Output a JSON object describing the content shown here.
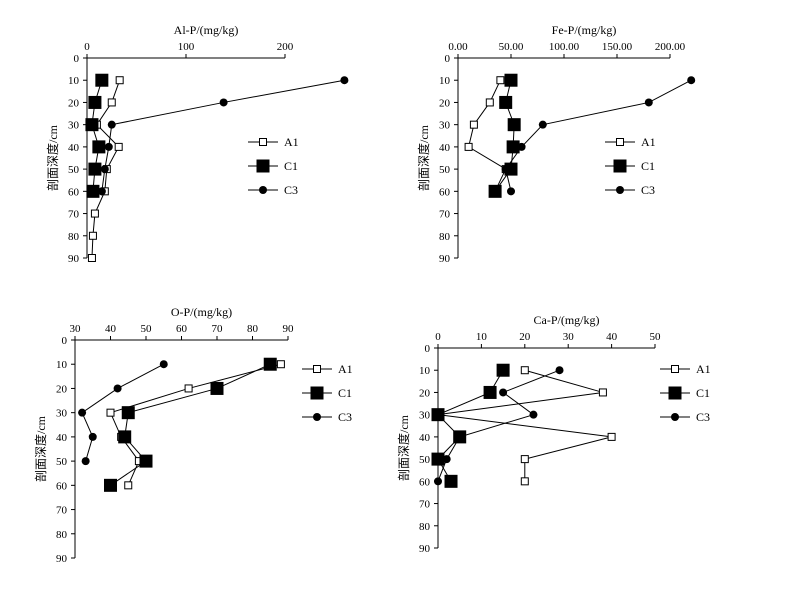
{
  "chart_data": [
    {
      "type": "line",
      "title": "",
      "xlabel": "Al-P/(mg/kg)",
      "ylabel": "剖面深度/cm",
      "xlim": [
        0,
        200
      ],
      "xticks": [
        0,
        100,
        200
      ],
      "ylim": [
        0,
        90
      ],
      "yticks": [
        0,
        10,
        20,
        30,
        40,
        50,
        60,
        70,
        80,
        90
      ],
      "legend_placement": "right",
      "series": [
        {
          "name": "A1",
          "marker": "open-square",
          "points": [
            [
              33,
              10
            ],
            [
              25,
              20
            ],
            [
              10,
              30
            ],
            [
              32,
              40
            ],
            [
              20,
              50
            ],
            [
              18,
              60
            ],
            [
              8,
              70
            ],
            [
              6,
              80
            ],
            [
              5,
              90
            ]
          ]
        },
        {
          "name": "C1",
          "marker": "filled-square",
          "points": [
            [
              15,
              10
            ],
            [
              8,
              20
            ],
            [
              5,
              30
            ],
            [
              12,
              40
            ],
            [
              8,
              50
            ],
            [
              6,
              60
            ]
          ]
        },
        {
          "name": "C3",
          "marker": "filled-circle",
          "points": [
            [
              260,
              10
            ],
            [
              138,
              20
            ],
            [
              25,
              30
            ],
            [
              22,
              40
            ],
            [
              18,
              50
            ],
            [
              15,
              60
            ]
          ]
        }
      ]
    },
    {
      "type": "line",
      "title": "",
      "xlabel": "Fe-P/(mg/kg)",
      "ylabel": "剖面深度/cm",
      "xlim": [
        0,
        200
      ],
      "xticks": [
        0,
        50,
        100,
        150,
        200
      ],
      "xtick_labels": [
        "0.00",
        "50.00",
        "100.00",
        "150.00",
        "200.00"
      ],
      "ylim": [
        0,
        90
      ],
      "yticks": [
        0,
        10,
        20,
        30,
        40,
        50,
        60,
        70,
        80,
        90
      ],
      "legend_placement": "right",
      "series": [
        {
          "name": "A1",
          "marker": "open-square",
          "points": [
            [
              40,
              10
            ],
            [
              30,
              20
            ],
            [
              15,
              30
            ],
            [
              10,
              40
            ],
            [
              45,
              50
            ],
            [
              35,
              60
            ]
          ]
        },
        {
          "name": "C1",
          "marker": "filled-square",
          "points": [
            [
              50,
              10
            ],
            [
              45,
              20
            ],
            [
              53,
              30
            ],
            [
              52,
              40
            ],
            [
              50,
              50
            ],
            [
              35,
              60
            ]
          ]
        },
        {
          "name": "C3",
          "marker": "filled-circle",
          "points": [
            [
              220,
              10
            ],
            [
              180,
              20
            ],
            [
              80,
              30
            ],
            [
              60,
              40
            ],
            [
              45,
              50
            ],
            [
              50,
              60
            ]
          ]
        }
      ]
    },
    {
      "type": "line",
      "title": "",
      "xlabel": "O-P/(mg/kg)",
      "ylabel": "剖面深度/cm",
      "xlim": [
        30,
        90
      ],
      "xticks": [
        30,
        40,
        50,
        60,
        70,
        80,
        90
      ],
      "ylim": [
        0,
        90
      ],
      "yticks": [
        0,
        10,
        20,
        30,
        40,
        50,
        60,
        70,
        80,
        90
      ],
      "legend_placement": "right",
      "series": [
        {
          "name": "A1",
          "marker": "open-square",
          "points": [
            [
              88,
              10
            ],
            [
              62,
              20
            ],
            [
              40,
              30
            ],
            [
              43,
              40
            ],
            [
              48,
              50
            ],
            [
              45,
              60
            ]
          ]
        },
        {
          "name": "C1",
          "marker": "filled-square",
          "points": [
            [
              85,
              10
            ],
            [
              70,
              20
            ],
            [
              45,
              30
            ],
            [
              44,
              40
            ],
            [
              50,
              50
            ],
            [
              40,
              60
            ]
          ]
        },
        {
          "name": "C3",
          "marker": "filled-circle",
          "points": [
            [
              55,
              10
            ],
            [
              42,
              20
            ],
            [
              32,
              30
            ],
            [
              35,
              40
            ],
            [
              33,
              50
            ]
          ]
        }
      ]
    },
    {
      "type": "line",
      "title": "",
      "xlabel": "Ca-P/(mg/kg)",
      "ylabel": "剖面深度/cm",
      "xlim": [
        0,
        50
      ],
      "xticks": [
        0,
        10,
        20,
        30,
        40,
        50
      ],
      "ylim": [
        0,
        90
      ],
      "yticks": [
        0,
        10,
        20,
        30,
        40,
        50,
        60,
        70,
        80,
        90
      ],
      "legend_placement": "right",
      "series": [
        {
          "name": "A1",
          "marker": "open-square",
          "points": [
            [
              20,
              10
            ],
            [
              38,
              20
            ],
            [
              0,
              30
            ],
            [
              40,
              40
            ],
            [
              20,
              50
            ],
            [
              20,
              60
            ]
          ]
        },
        {
          "name": "C1",
          "marker": "filled-square",
          "points": [
            [
              15,
              10
            ],
            [
              12,
              20
            ],
            [
              0,
              30
            ],
            [
              5,
              40
            ],
            [
              0,
              50
            ],
            [
              3,
              60
            ]
          ]
        },
        {
          "name": "C3",
          "marker": "filled-circle",
          "points": [
            [
              28,
              10
            ],
            [
              15,
              20
            ],
            [
              22,
              30
            ],
            [
              5,
              40
            ],
            [
              2,
              50
            ],
            [
              0,
              60
            ]
          ]
        }
      ]
    }
  ]
}
